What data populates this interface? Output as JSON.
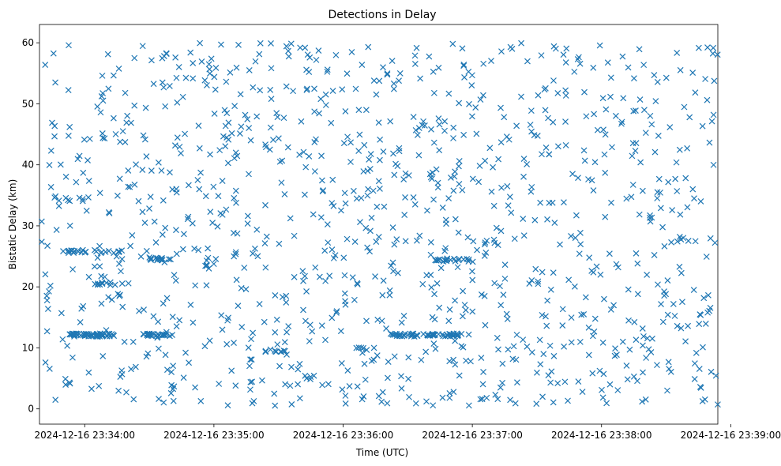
{
  "chart_data": {
    "type": "scatter",
    "title": "Detections in Delay",
    "xlabel": "Time (UTC)",
    "ylabel": "Bistatic Delay (km)",
    "marker": "x",
    "color": "#1f77b4",
    "xlim": [
      "2024-12-16 23:33:39",
      "2024-12-16 23:38:54"
    ],
    "ylim": [
      -2.5,
      63
    ],
    "x_ticks": [
      "2024-12-16 23:34:00",
      "2024-12-16 23:35:00",
      "2024-12-16 23:36:00",
      "2024-12-16 23:37:00",
      "2024-12-16 23:38:00",
      "2024-12-16 23:39:00"
    ],
    "x_tick_seconds": [
      0,
      60,
      120,
      180,
      240,
      300
    ],
    "y_ticks": [
      0,
      10,
      20,
      30,
      40,
      50,
      60
    ],
    "x_range_seconds": [
      -21,
      294
    ],
    "points_note": "Approximately 1400 randomly distributed detections; seconds relative to 2024-12-16 23:34:00",
    "clusters": [
      {
        "t_start": -7,
        "t_end": 14,
        "delay": 12.1,
        "count": 55
      },
      {
        "t_start": 27,
        "t_end": 40,
        "delay": 12.1,
        "count": 25
      },
      {
        "t_start": 142,
        "t_end": 175,
        "delay": 12.1,
        "count": 60
      },
      {
        "t_start": -10,
        "t_end": 20,
        "delay": 25.8,
        "count": 25
      },
      {
        "t_start": 30,
        "t_end": 40,
        "delay": 24.6,
        "count": 15
      },
      {
        "t_start": 162,
        "t_end": 180,
        "delay": 24.4,
        "count": 18
      },
      {
        "t_start": 4,
        "t_end": 22,
        "delay": 20.5,
        "count": 12
      },
      {
        "t_start": 82,
        "t_end": 96,
        "delay": 9.5,
        "count": 10
      },
      {
        "t_start": 126,
        "t_end": 135,
        "delay": 9.9,
        "count": 6
      }
    ],
    "random_points": {
      "count": 1100,
      "t_min": -20,
      "t_max": 294,
      "delay_min": 0.5,
      "delay_max": 60,
      "seed": 12345
    }
  }
}
